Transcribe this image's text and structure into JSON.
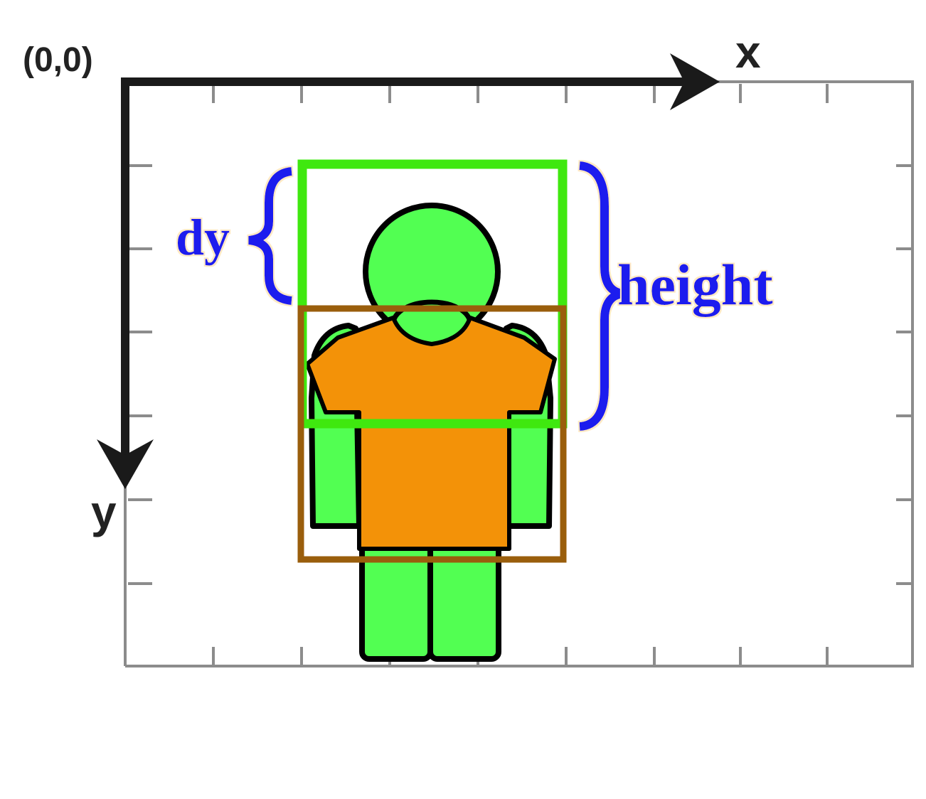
{
  "axes": {
    "origin_label": "(0,0)",
    "x_label": "x",
    "y_label": "y"
  },
  "annotations": {
    "dy_label": "dy",
    "height_label": "height"
  },
  "colors": {
    "annotation_text": "#1a1aee",
    "annotation_glow": "#ffe9c4",
    "head_box": "#3fe80f",
    "body_box": "#9a5e0c",
    "figure_green": "#52ff52",
    "shirt_orange": "#f39208",
    "outline": "#000000",
    "axis": "#1a1a1a",
    "frame": "#8c8c8c"
  },
  "icons": {
    "figure": "person-icon"
  }
}
